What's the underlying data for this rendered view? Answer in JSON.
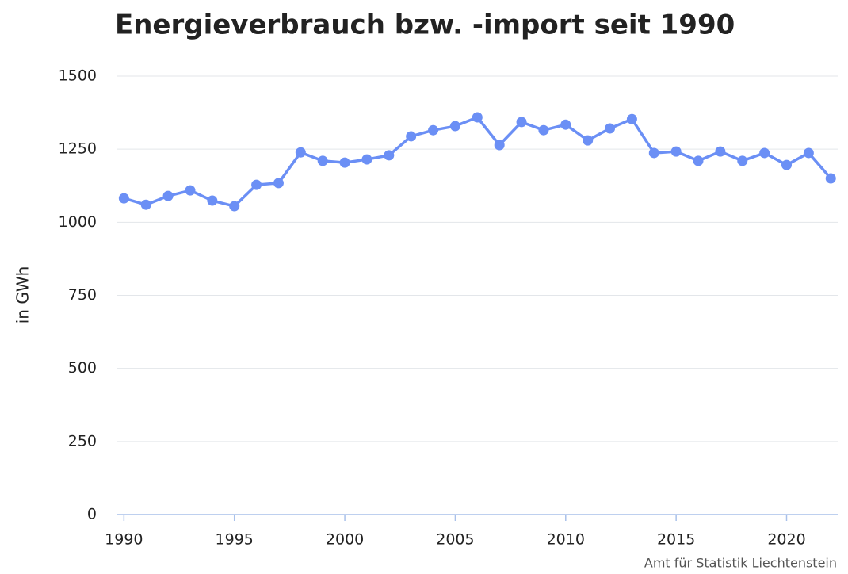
{
  "chart_data": {
    "type": "line",
    "title": "Energieverbrauch bzw. -import seit 1990",
    "y_label": "in GWh",
    "credit": "Amt für Statistik Liechtenstein",
    "x": [
      1990,
      1991,
      1992,
      1993,
      1994,
      1995,
      1996,
      1997,
      1998,
      1999,
      2000,
      2001,
      2002,
      2003,
      2004,
      2005,
      2006,
      2007,
      2008,
      2009,
      2010,
      2011,
      2012,
      2013,
      2014,
      2015,
      2016,
      2017,
      2018,
      2019,
      2020,
      2021,
      2022
    ],
    "series": [
      {
        "name": "Energieverbrauch",
        "color": "#6b8ff5",
        "values": [
          1082,
          1060,
          1090,
          1109,
          1074,
          1055,
          1128,
          1134,
          1239,
          1210,
          1204,
          1215,
          1229,
          1294,
          1315,
          1329,
          1359,
          1264,
          1343,
          1315,
          1334,
          1280,
          1321,
          1353,
          1237,
          1242,
          1210,
          1242,
          1210,
          1237,
          1196,
          1237,
          1150
        ]
      }
    ],
    "xlim": [
      1989.7,
      2022.35
    ],
    "xticks": [
      1990,
      1995,
      2000,
      2005,
      2010,
      2015,
      2020
    ],
    "ylim": [
      0,
      1500
    ],
    "yticks": [
      0,
      250,
      500,
      750,
      1000,
      1250,
      1500
    ],
    "grid": true
  }
}
